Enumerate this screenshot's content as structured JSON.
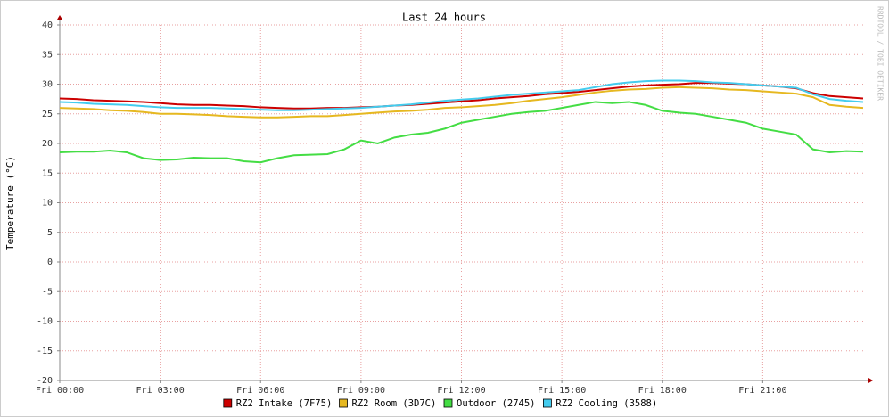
{
  "chart_data": {
    "type": "line",
    "title": "Last 24 hours",
    "ylabel": "Temperature (°C)",
    "watermark": "RRDTOOL / TOBI OETIKER",
    "x": [
      0,
      0.5,
      1,
      1.5,
      2,
      2.5,
      3,
      3.5,
      4,
      4.5,
      5,
      5.5,
      6,
      6.5,
      7,
      7.5,
      8,
      8.5,
      9,
      9.5,
      10,
      10.5,
      11,
      11.5,
      12,
      12.5,
      13,
      13.5,
      14,
      14.5,
      15,
      15.5,
      16,
      16.5,
      17,
      17.5,
      18,
      18.5,
      19,
      19.5,
      20,
      20.5,
      21,
      21.5,
      22,
      22.5,
      23,
      23.5,
      24
    ],
    "xlim": [
      0,
      24
    ],
    "xticks": [
      {
        "value": 0,
        "label": "Fri 00:00"
      },
      {
        "value": 3,
        "label": "Fri 03:00"
      },
      {
        "value": 6,
        "label": "Fri 06:00"
      },
      {
        "value": 9,
        "label": "Fri 09:00"
      },
      {
        "value": 12,
        "label": "Fri 12:00"
      },
      {
        "value": 15,
        "label": "Fri 15:00"
      },
      {
        "value": 18,
        "label": "Fri 18:00"
      },
      {
        "value": 21,
        "label": "Fri 21:00"
      }
    ],
    "ylim": [
      -20,
      40
    ],
    "yticks": [
      -20,
      -15,
      -10,
      -5,
      0,
      5,
      10,
      15,
      20,
      25,
      30,
      35,
      40
    ],
    "grid": true,
    "series": [
      {
        "name": "RZ2 Intake (7F75)",
        "color": "#cc0000",
        "values": [
          27.6,
          27.5,
          27.3,
          27.2,
          27.1,
          27,
          26.8,
          26.6,
          26.5,
          26.5,
          26.4,
          26.3,
          26.1,
          26,
          25.9,
          25.9,
          26,
          26,
          26.1,
          26.2,
          26.4,
          26.5,
          26.7,
          26.9,
          27.1,
          27.3,
          27.6,
          27.8,
          28,
          28.3,
          28.5,
          28.7,
          29,
          29.3,
          29.6,
          29.8,
          29.9,
          30,
          30.2,
          30.2,
          30.1,
          30,
          29.8,
          29.6,
          29.3,
          28.5,
          28,
          27.8,
          27.6
        ]
      },
      {
        "name": "RZ2 Room (3D7C)",
        "color": "#e6b820",
        "values": [
          26,
          25.9,
          25.8,
          25.6,
          25.5,
          25.3,
          25,
          25,
          24.9,
          24.8,
          24.6,
          24.5,
          24.4,
          24.4,
          24.5,
          24.6,
          24.6,
          24.8,
          25,
          25.2,
          25.4,
          25.5,
          25.7,
          26,
          26.1,
          26.3,
          26.5,
          26.8,
          27.2,
          27.5,
          27.8,
          28.2,
          28.6,
          28.9,
          29.1,
          29.2,
          29.4,
          29.5,
          29.4,
          29.3,
          29.1,
          29,
          28.8,
          28.6,
          28.4,
          27.8,
          26.5,
          26.2,
          26
        ]
      },
      {
        "name": "Outdoor (2745)",
        "color": "#44dd44",
        "values": [
          18.5,
          18.6,
          18.6,
          18.8,
          18.5,
          17.5,
          17.2,
          17.3,
          17.6,
          17.5,
          17.5,
          17,
          16.8,
          17.5,
          18,
          18.1,
          18.2,
          19,
          20.5,
          20,
          21,
          21.5,
          21.8,
          22.5,
          23.5,
          24,
          24.5,
          25,
          25.3,
          25.5,
          26,
          26.5,
          27,
          26.8,
          27,
          26.5,
          25.5,
          25.2,
          25,
          24.5,
          24,
          23.5,
          22.5,
          22,
          21.5,
          19,
          18.5,
          18.7,
          18.6
        ]
      },
      {
        "name": "RZ2 Cooling (3588)",
        "color": "#44ccee",
        "values": [
          27,
          26.9,
          26.7,
          26.6,
          26.5,
          26.3,
          26.1,
          26,
          26,
          26,
          25.9,
          25.8,
          25.7,
          25.6,
          25.6,
          25.7,
          25.8,
          25.9,
          26,
          26.2,
          26.4,
          26.6,
          26.9,
          27.2,
          27.4,
          27.6,
          27.9,
          28.2,
          28.4,
          28.6,
          28.8,
          29,
          29.5,
          30,
          30.3,
          30.5,
          30.6,
          30.6,
          30.5,
          30.3,
          30.2,
          30,
          29.8,
          29.6,
          29.4,
          28.3,
          27.5,
          27.2,
          27
        ]
      }
    ]
  }
}
